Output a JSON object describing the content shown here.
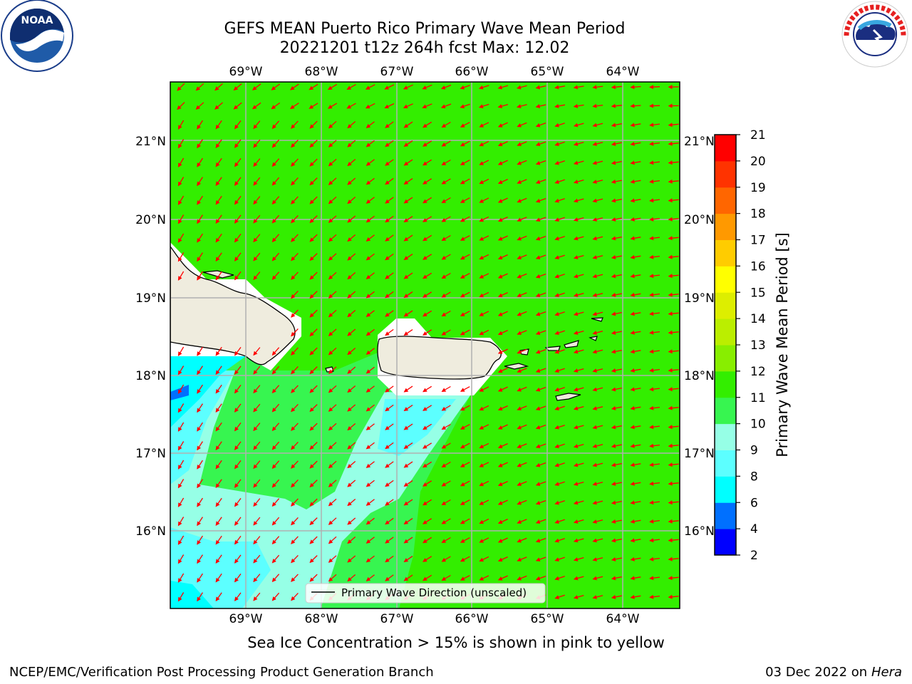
{
  "header": {
    "title_line1": "GEFS MEAN Puerto Rico Primary Wave Mean Period",
    "title_line2": "20221201 t12z 264h fcst   Max: 12.02"
  },
  "logos": {
    "left": "noaa-logo",
    "left_text": "NOAA",
    "right": "nws-logo",
    "right_text": "NATIONAL WEATHER SERVICE"
  },
  "map": {
    "lon_labels": [
      "69°W",
      "68°W",
      "67°W",
      "66°W",
      "65°W",
      "64°W"
    ],
    "lat_labels": [
      "21°N",
      "20°N",
      "19°N",
      "18°N",
      "17°N",
      "16°N"
    ],
    "legend_label": "Primary Wave Direction (unscaled)",
    "colors": {
      "land": "#efecde",
      "no_data": "#ffffff",
      "arrow": "#ff0000",
      "grid": "#b0b0b0"
    }
  },
  "colorbar": {
    "label": "Primary Wave Mean Period [s]",
    "ticks": [
      "2",
      "4",
      "6",
      "8",
      "9",
      "10",
      "11",
      "12",
      "13",
      "14",
      "15",
      "16",
      "17",
      "18",
      "19",
      "20",
      "21"
    ],
    "colors": [
      "#0000ff",
      "#0070ff",
      "#00ffff",
      "#5cffff",
      "#96ffe6",
      "#37f550",
      "#33ee00",
      "#88ee00",
      "#bbee00",
      "#ddee00",
      "#ffff00",
      "#ffcc00",
      "#ff9900",
      "#ff6600",
      "#ff3300",
      "#ff0000"
    ]
  },
  "footer": {
    "caption": "Sea Ice Concentration > 15% is shown in pink to yellow",
    "credit_left": "NCEP/EMC/Verification Post Processing Product Generation Branch",
    "credit_date": "03 Dec 2022 on",
    "credit_host": "Hera"
  }
}
